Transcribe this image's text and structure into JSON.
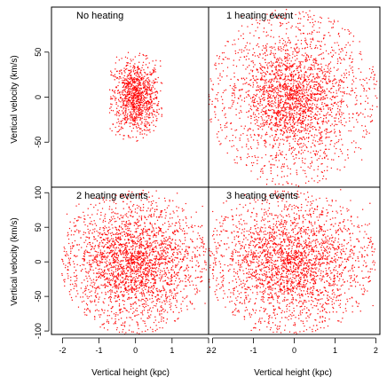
{
  "chart_data": {
    "type": "scatter",
    "layout": "2x2 panels, shared axes",
    "xlabel": "Vertical height (kpc)",
    "ylabel": "Vertical velocity (km/s)",
    "point_color": "#ff0000",
    "panels": [
      {
        "label": "No heating",
        "row": 0,
        "col": 0,
        "xlim": [
          -2.3,
          2.0
        ],
        "ylim": [
          -100,
          100
        ],
        "x_ticks": [
          -2,
          -1,
          0,
          1,
          2
        ],
        "y_ticks": [
          50,
          0,
          -50
        ],
        "y_tick_labels": [
          "50",
          "0",
          "-50"
        ],
        "distribution": {
          "center_x": 0,
          "center_y": 0,
          "sigma_x_kpc": 0.33,
          "sigma_vz_kms": 20,
          "max_x_kpc": 0.72,
          "max_vz_kms": 52,
          "shape": "compact ellipse"
        }
      },
      {
        "label": "1 heating event",
        "row": 0,
        "col": 1,
        "xlim": [
          -2.1,
          2.1
        ],
        "ylim": [
          -100,
          100
        ],
        "x_ticks": [
          -2,
          -1,
          0,
          1,
          2
        ],
        "distribution": {
          "center_x": -0.05,
          "center_y": 0,
          "sigma_x_kpc": 0.6,
          "sigma_vz_kms": 32,
          "max_x_kpc": 2.1,
          "max_vz_kms": 100,
          "shape": "concentric elliptical shells"
        }
      },
      {
        "label": "2 heating events",
        "row": 1,
        "col": 0,
        "xlim": [
          -2.3,
          2.0
        ],
        "ylim": [
          -105,
          108
        ],
        "x_ticks": [
          -2,
          -1,
          0,
          1,
          2
        ],
        "x_tick_labels": [
          "-2",
          "-1",
          "0",
          "1",
          "2"
        ],
        "y_ticks": [
          100,
          50,
          0,
          -50,
          -100
        ],
        "y_tick_labels": [
          "100",
          "50",
          "0",
          "-50",
          "-100"
        ],
        "distribution": {
          "center_x": -0.05,
          "center_y": 0,
          "sigma_x_kpc": 0.75,
          "sigma_vz_kms": 38,
          "max_x_kpc": 2.0,
          "max_vz_kms": 105,
          "shape": "diffuse ellipse"
        }
      },
      {
        "label": "3 heating events",
        "row": 1,
        "col": 1,
        "xlim": [
          -2.1,
          2.1
        ],
        "ylim": [
          -105,
          108
        ],
        "x_ticks": [
          -2,
          -1,
          0,
          1,
          2
        ],
        "x_tick_labels": [
          "-2",
          "-1",
          "0",
          "1",
          "2"
        ],
        "distribution": {
          "center_x": -0.1,
          "center_y": 0,
          "sigma_x_kpc": 0.78,
          "sigma_vz_kms": 40,
          "max_x_kpc": 2.1,
          "max_vz_kms": 105,
          "shape": "diffuse ellipse"
        }
      }
    ]
  }
}
